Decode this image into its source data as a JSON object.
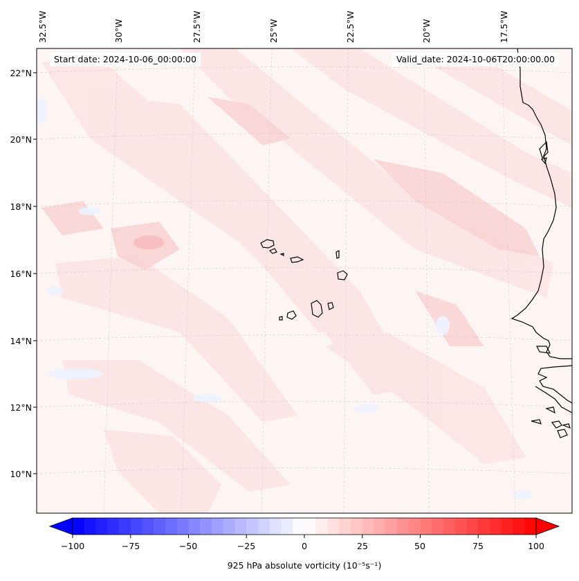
{
  "map": {
    "header": {
      "start_date": "Start date: 2024-10-06_00:00:00",
      "valid_date": "Valid_date: 2024-10-06T20:00:00.00"
    },
    "longitude_labels": [
      "32.5°W",
      "30°W",
      "27.5°W",
      "25°W",
      "22.5°W",
      "20°W",
      "17.5°W"
    ],
    "latitude_labels": [
      "22°N",
      "20°N",
      "18°N",
      "16°N",
      "14°N",
      "12°N",
      "10°N"
    ],
    "field_colors": {
      "background": "#fdf4f4",
      "positive_light": "#fce3e3",
      "positive_mid": "#f9d0d0",
      "negative_light": "#f1f3ff"
    }
  },
  "colorbar": {
    "ticks": [
      "−100",
      "−75",
      "−50",
      "−25",
      "0",
      "25",
      "50",
      "75",
      "100"
    ],
    "label": "925 hPa absolute vorticity (10⁻⁵s⁻¹)",
    "min_color": "#0000ff",
    "max_color": "#ff0000"
  }
}
